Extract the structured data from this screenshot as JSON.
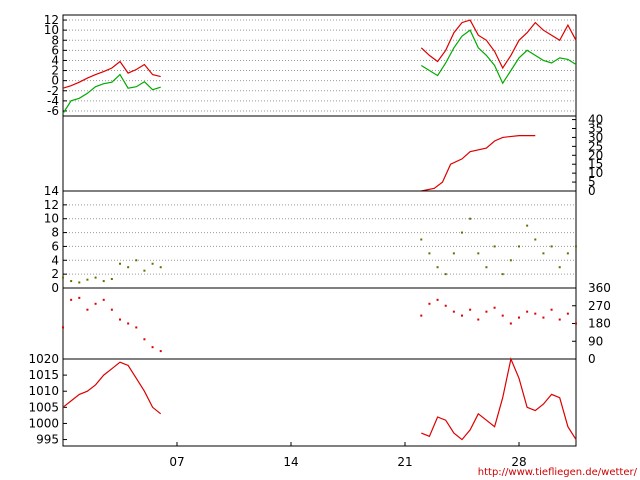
{
  "site_url": "http://www.tiefliegen.de/wetter/",
  "colors": {
    "red": "#dd0000",
    "green": "#00aa00",
    "olive": "#6b6b00",
    "grid": "#999999",
    "frame": "#000000",
    "url": "#cc0000"
  },
  "chart_data": [
    {
      "type": "line",
      "yaxis_side": "left",
      "ylim": [
        -7,
        13
      ],
      "y_ticks": [
        "-6",
        "-4",
        "-2",
        "0",
        "2",
        "4",
        "6",
        "8",
        "10",
        "12"
      ],
      "grid": true,
      "x_day_range": [
        0,
        31.5
      ],
      "series": [
        {
          "color": "red",
          "segments": [
            {
              "x": [
                0,
                0.5,
                1,
                1.5,
                2,
                2.5,
                3,
                3.5,
                4,
                4.5,
                5,
                5.5,
                6
              ],
              "y": [
                -1.5,
                -1,
                -0.3,
                0.5,
                1.2,
                1.8,
                2.5,
                3.8,
                1.5,
                2.2,
                3.2,
                1.2,
                0.8
              ]
            },
            {
              "x": [
                22,
                22.5,
                23,
                23.5,
                24,
                24.5,
                25,
                25.5,
                26,
                26.5,
                27,
                27.5,
                28,
                28.5,
                29,
                29.5,
                30,
                30.5,
                31,
                31.5
              ],
              "y": [
                6.5,
                5,
                3.8,
                6,
                9.5,
                11.5,
                12,
                9,
                8,
                5.8,
                2.5,
                5,
                8,
                9.5,
                11.5,
                10,
                9,
                8,
                11,
                8
              ]
            }
          ]
        },
        {
          "color": "green",
          "segments": [
            {
              "x": [
                0,
                0.5,
                1,
                1.5,
                2,
                2.5,
                3,
                3.5,
                4,
                4.5,
                5,
                5.5,
                6
              ],
              "y": [
                -6.5,
                -4,
                -3.5,
                -2.5,
                -1.2,
                -0.6,
                -0.3,
                1.2,
                -1.5,
                -1.2,
                -0.2,
                -1.8,
                -1.3
              ]
            },
            {
              "x": [
                22,
                22.5,
                23,
                23.5,
                24,
                24.5,
                25,
                25.5,
                26,
                26.5,
                27,
                27.5,
                28,
                28.5,
                29,
                29.5,
                30,
                30.5,
                31,
                31.5
              ],
              "y": [
                3,
                2,
                1,
                3.5,
                6.5,
                8.8,
                10,
                6.5,
                5,
                3,
                -0.5,
                2,
                4.5,
                6,
                5,
                4,
                3.5,
                4.5,
                4.2,
                3.2
              ]
            }
          ]
        }
      ]
    },
    {
      "type": "line",
      "yaxis_side": "right",
      "ylim": [
        0,
        42
      ],
      "y_ticks": [
        "0",
        "5",
        "10",
        "15",
        "20",
        "25",
        "30",
        "35",
        "40"
      ],
      "grid": false,
      "x_day_range": [
        0,
        31.5
      ],
      "series": [
        {
          "color": "red",
          "segments": [
            {
              "x": [
                22,
                22.8,
                23.3,
                23.8,
                24.5,
                25,
                26,
                26.5,
                27,
                28,
                29
              ],
              "y": [
                0,
                1.5,
                5,
                15,
                18,
                22,
                24,
                28,
                30,
                31,
                31
              ]
            }
          ]
        }
      ]
    },
    {
      "type": "scatter",
      "yaxis_side": "left",
      "ylim": [
        0,
        14
      ],
      "y_ticks": [
        "0",
        "2",
        "4",
        "6",
        "8",
        "10",
        "12",
        "14"
      ],
      "grid": true,
      "x_day_range": [
        0,
        31.5
      ],
      "series": [
        {
          "color": "olive",
          "segments": [
            {
              "x": [
                0,
                0.5,
                1,
                1.5,
                2,
                2.5,
                3,
                3.5,
                4,
                4.5,
                5,
                5.5,
                6
              ],
              "y": [
                1.5,
                1,
                0.8,
                1.2,
                1.5,
                1,
                1.3,
                3.5,
                3,
                4,
                2.5,
                3.5,
                3
              ]
            },
            {
              "x": [
                22,
                22.5,
                23,
                23.5,
                24,
                24.5,
                25,
                25.5,
                26,
                26.5,
                27,
                27.5,
                28,
                28.5,
                29,
                29.5,
                30,
                30.5,
                31,
                31.5
              ],
              "y": [
                7,
                5,
                3,
                2,
                5,
                8,
                10,
                5,
                3,
                6,
                2,
                4,
                6,
                9,
                7,
                5,
                6,
                3,
                5,
                6
              ]
            }
          ]
        }
      ]
    },
    {
      "type": "scatter",
      "yaxis_side": "right",
      "ylim": [
        0,
        360
      ],
      "y_ticks": [
        "0",
        "90",
        "180",
        "270",
        "360"
      ],
      "grid": false,
      "x_day_range": [
        0,
        31.5
      ],
      "series": [
        {
          "color": "red",
          "segments": [
            {
              "x": [
                0,
                0.5,
                1,
                1.5,
                2,
                2.5,
                3,
                3.5,
                4,
                4.5,
                5,
                5.5,
                6
              ],
              "y": [
                160,
                300,
                310,
                250,
                280,
                300,
                250,
                200,
                180,
                160,
                100,
                60,
                40
              ]
            },
            {
              "x": [
                22,
                22.5,
                23,
                23.5,
                24,
                24.5,
                25,
                25.5,
                26,
                26.5,
                27,
                27.5,
                28,
                28.5,
                29,
                29.5,
                30,
                30.5,
                31,
                31.5
              ],
              "y": [
                220,
                280,
                300,
                270,
                240,
                220,
                250,
                200,
                240,
                260,
                220,
                180,
                210,
                240,
                230,
                210,
                250,
                200,
                230,
                180
              ]
            }
          ]
        }
      ]
    },
    {
      "type": "line",
      "yaxis_side": "left",
      "ylim": [
        993,
        1020
      ],
      "y_ticks": [
        "995",
        "1000",
        "1005",
        "1010",
        "1015",
        "1020"
      ],
      "grid": false,
      "x_day_range": [
        0,
        31.5
      ],
      "x_ticks": [
        "07",
        "14",
        "21",
        "28"
      ],
      "series": [
        {
          "color": "red",
          "segments": [
            {
              "x": [
                0,
                0.5,
                1,
                1.5,
                2,
                2.5,
                3,
                3.5,
                4,
                4.5,
                5,
                5.5,
                6
              ],
              "y": [
                1005,
                1007,
                1009,
                1010,
                1012,
                1015,
                1017,
                1019,
                1018,
                1014,
                1010,
                1005,
                1003
              ]
            },
            {
              "x": [
                22,
                22.5,
                23,
                23.5,
                24,
                24.5,
                25,
                25.5,
                26,
                26.5,
                27,
                27.5,
                28,
                28.5,
                29,
                29.5,
                30,
                30.5,
                31,
                31.5
              ],
              "y": [
                997,
                996,
                1002,
                1001,
                997,
                995,
                998,
                1003,
                1001,
                999,
                1008,
                1020,
                1014,
                1005,
                1004,
                1006,
                1009,
                1008,
                999,
                995
              ]
            }
          ]
        }
      ]
    }
  ]
}
